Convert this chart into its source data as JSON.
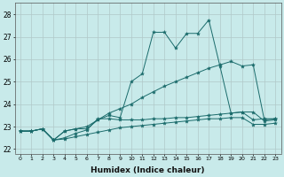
{
  "xlabel": "Humidex (Indice chaleur)",
  "background_color": "#c8eaea",
  "grid_color": "#b0c8c8",
  "line_color": "#1a6b6b",
  "xlim": [
    -0.5,
    23.5
  ],
  "ylim": [
    21.8,
    28.5
  ],
  "yticks": [
    22,
    23,
    24,
    25,
    26,
    27,
    28
  ],
  "xticks": [
    0,
    1,
    2,
    3,
    4,
    5,
    6,
    7,
    8,
    9,
    10,
    11,
    12,
    13,
    14,
    15,
    16,
    17,
    18,
    19,
    20,
    21,
    22,
    23
  ],
  "series": [
    [
      22.8,
      22.8,
      22.9,
      22.4,
      22.8,
      22.9,
      22.9,
      23.3,
      23.5,
      23.4,
      25.0,
      25.35,
      27.2,
      27.2,
      26.5,
      27.15,
      27.15,
      27.75,
      25.7,
      23.6,
      23.65,
      23.3,
      23.35,
      23.35
    ],
    [
      22.8,
      22.8,
      22.9,
      22.4,
      22.8,
      22.9,
      23.0,
      23.3,
      23.6,
      23.8,
      24.0,
      24.3,
      24.55,
      24.8,
      25.0,
      25.2,
      25.4,
      25.6,
      25.75,
      25.9,
      25.7,
      25.75,
      23.3,
      23.35
    ],
    [
      22.8,
      22.8,
      22.9,
      22.4,
      22.5,
      22.7,
      22.85,
      23.35,
      23.35,
      23.3,
      23.3,
      23.3,
      23.35,
      23.35,
      23.4,
      23.4,
      23.45,
      23.5,
      23.55,
      23.6,
      23.65,
      23.65,
      23.25,
      23.3
    ],
    [
      22.8,
      22.8,
      22.9,
      22.4,
      22.45,
      22.55,
      22.65,
      22.75,
      22.85,
      22.95,
      23.0,
      23.05,
      23.1,
      23.15,
      23.2,
      23.25,
      23.3,
      23.35,
      23.35,
      23.4,
      23.4,
      23.1,
      23.1,
      23.15
    ]
  ]
}
